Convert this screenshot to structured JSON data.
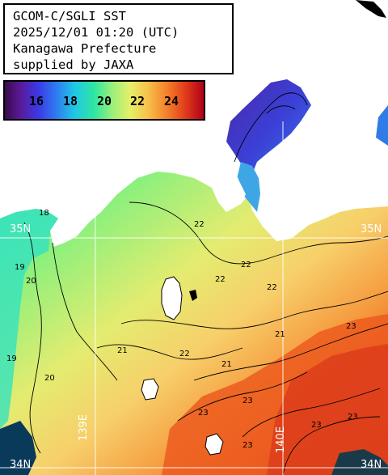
{
  "title_lines": [
    "GCOM-C/SGLI SST",
    "2025/12/01 01:20 (UTC)",
    "Kanagawa Prefecture",
    "supplied by JAXA"
  ],
  "colorbar": {
    "ticks": [
      "16",
      "18",
      "20",
      "22",
      "24"
    ]
  },
  "grid_labels": {
    "lat_35n_left": "35N",
    "lat_35n_right": "35N",
    "lat_34n_left": "34N",
    "lat_34n_right": "34N",
    "lon_139e": "139E",
    "lon_140e": "140E"
  },
  "contour_labels": [
    "18",
    "19",
    "19",
    "20",
    "20",
    "21",
    "21",
    "21",
    "22",
    "22",
    "22",
    "22",
    "22",
    "23",
    "23",
    "23",
    "23",
    "23",
    "23"
  ]
}
